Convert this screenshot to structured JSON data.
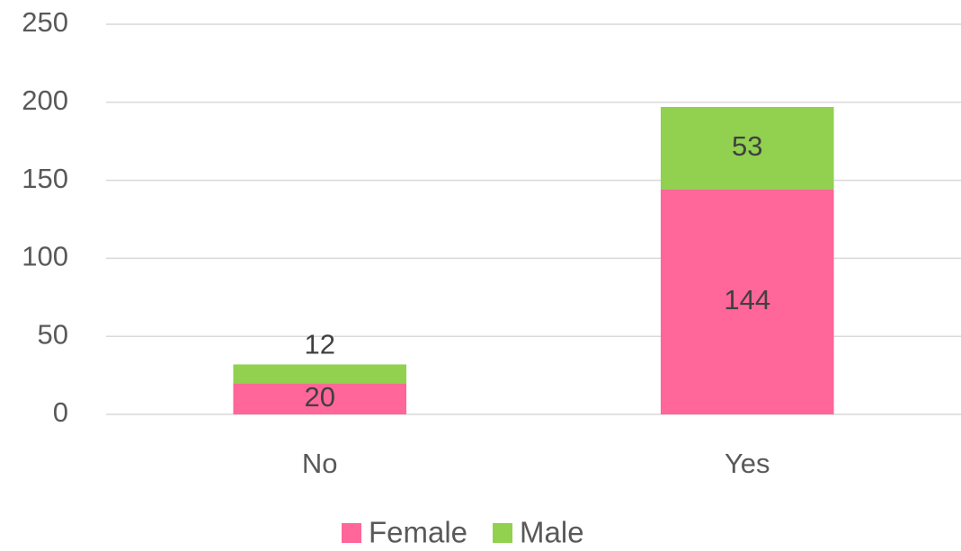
{
  "chart_data": {
    "type": "bar",
    "stacked": true,
    "categories": [
      "No",
      "Yes"
    ],
    "series": [
      {
        "name": "Female",
        "color": "#ff6699",
        "values": [
          20,
          144
        ]
      },
      {
        "name": "Male",
        "color": "#92d050",
        "values": [
          12,
          53
        ]
      }
    ],
    "ylim": [
      0,
      250
    ],
    "yticks": [
      0,
      50,
      100,
      150,
      200,
      250
    ],
    "grid": true,
    "legend": "bottom"
  }
}
